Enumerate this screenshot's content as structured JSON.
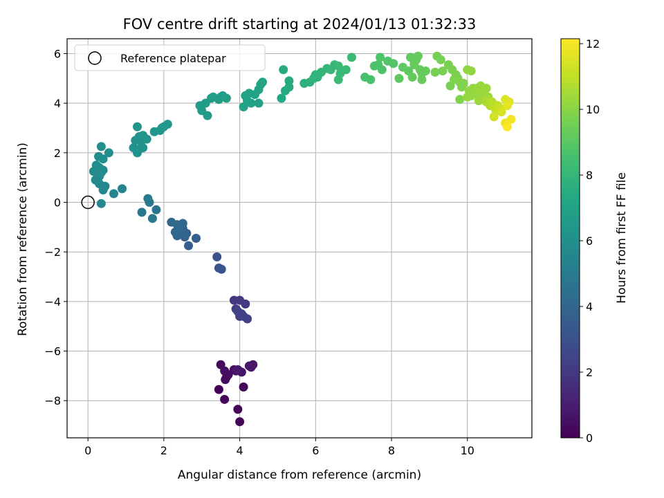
{
  "chart_data": {
    "type": "scatter",
    "title": "FOV centre drift starting at 2024/01/13 01:32:33",
    "xlabel": "Angular distance from reference (arcmin)",
    "ylabel": "Rotation from reference (arcmin)",
    "xlim": [
      -0.55,
      11.7
    ],
    "ylim": [
      -9.5,
      6.6
    ],
    "xticks": [
      0,
      2,
      4,
      6,
      8,
      10
    ],
    "yticks": [
      -8,
      -6,
      -4,
      -2,
      0,
      2,
      4,
      6
    ],
    "grid": true,
    "legend": {
      "position": "top-left",
      "entries": [
        "Reference platepar"
      ]
    },
    "reference_point": {
      "x": 0,
      "y": 0
    },
    "colorbar": {
      "label": "Hours from first FF file",
      "range": [
        0,
        12.15
      ],
      "ticks": [
        0,
        2,
        4,
        6,
        8,
        10,
        12
      ],
      "colormap": "viridis"
    },
    "points": [
      [
        3.45,
        -7.55,
        0.05
      ],
      [
        4.0,
        -8.85,
        0.1
      ],
      [
        3.95,
        -8.35,
        0.15
      ],
      [
        3.6,
        -7.95,
        0.2
      ],
      [
        4.1,
        -7.45,
        0.25
      ],
      [
        3.5,
        -6.55,
        0.3
      ],
      [
        3.65,
        -7.05,
        0.35
      ],
      [
        3.62,
        -7.15,
        0.4
      ],
      [
        3.7,
        -6.95,
        0.45
      ],
      [
        3.6,
        -6.8,
        0.5
      ],
      [
        3.85,
        -6.75,
        0.55
      ],
      [
        3.9,
        -6.8,
        0.6
      ],
      [
        4.05,
        -6.85,
        0.65
      ],
      [
        4.3,
        -6.65,
        0.7
      ],
      [
        4.35,
        -6.55,
        0.75
      ],
      [
        4.25,
        -6.6,
        0.8
      ],
      [
        3.95,
        -6.75,
        0.85
      ],
      [
        3.85,
        -3.95,
        2.0
      ],
      [
        4.0,
        -3.95,
        2.05
      ],
      [
        4.15,
        -4.1,
        2.1
      ],
      [
        3.9,
        -4.3,
        2.15
      ],
      [
        4.0,
        -4.6,
        2.2
      ],
      [
        4.05,
        -4.5,
        2.25
      ],
      [
        4.2,
        -4.7,
        2.3
      ],
      [
        4.1,
        -4.6,
        2.35
      ],
      [
        3.95,
        -4.4,
        2.4
      ],
      [
        3.4,
        -2.2,
        3.0
      ],
      [
        3.45,
        -2.65,
        3.1
      ],
      [
        3.52,
        -2.7,
        3.15
      ],
      [
        2.85,
        -1.45,
        3.6
      ],
      [
        2.65,
        -1.75,
        3.7
      ],
      [
        2.55,
        -1.4,
        3.75
      ],
      [
        2.6,
        -1.25,
        3.8
      ],
      [
        2.5,
        -1.05,
        3.85
      ],
      [
        2.45,
        -1.2,
        3.9
      ],
      [
        2.35,
        -1.35,
        3.95
      ],
      [
        2.3,
        -1.2,
        4.0
      ],
      [
        2.2,
        -0.8,
        4.05
      ],
      [
        2.35,
        -0.9,
        4.1
      ],
      [
        2.5,
        -0.85,
        4.15
      ],
      [
        2.4,
        -1.0,
        4.2
      ],
      [
        1.8,
        -0.3,
        4.7
      ],
      [
        1.7,
        -0.65,
        4.8
      ],
      [
        1.42,
        -0.4,
        4.85
      ],
      [
        1.62,
        0.0,
        4.9
      ],
      [
        1.58,
        0.15,
        4.95
      ],
      [
        0.9,
        0.55,
        5.4
      ],
      [
        0.68,
        0.35,
        5.5
      ],
      [
        0.35,
        -0.05,
        5.55
      ],
      [
        0.45,
        0.65,
        5.6
      ],
      [
        0.4,
        0.5,
        5.62
      ],
      [
        0.3,
        0.75,
        5.65
      ],
      [
        0.2,
        0.9,
        5.7
      ],
      [
        0.25,
        1.0,
        5.72
      ],
      [
        0.15,
        1.25,
        5.75
      ],
      [
        0.35,
        1.2,
        5.77
      ],
      [
        0.3,
        1.05,
        5.8
      ],
      [
        0.22,
        1.5,
        5.82
      ],
      [
        0.4,
        1.3,
        5.84
      ],
      [
        0.3,
        1.4,
        5.86
      ],
      [
        0.2,
        1.3,
        5.88
      ],
      [
        0.28,
        1.85,
        5.9
      ],
      [
        0.4,
        1.75,
        5.92
      ],
      [
        0.55,
        2.0,
        5.94
      ],
      [
        0.35,
        2.25,
        5.96
      ],
      [
        1.3,
        2.0,
        6.1
      ],
      [
        1.2,
        2.2,
        6.12
      ],
      [
        1.35,
        2.15,
        6.14
      ],
      [
        1.45,
        2.2,
        6.16
      ],
      [
        1.25,
        2.5,
        6.18
      ],
      [
        1.4,
        2.45,
        6.2
      ],
      [
        1.55,
        2.55,
        6.22
      ],
      [
        1.35,
        2.65,
        6.24
      ],
      [
        1.3,
        3.05,
        6.26
      ],
      [
        1.45,
        2.7,
        6.28
      ],
      [
        1.75,
        2.85,
        6.35
      ],
      [
        1.9,
        2.9,
        6.38
      ],
      [
        2.0,
        3.05,
        6.4
      ],
      [
        2.1,
        3.15,
        6.42
      ],
      [
        1.95,
        3.0,
        6.44
      ],
      [
        3.15,
        3.5,
        6.6
      ],
      [
        3.0,
        3.7,
        6.62
      ],
      [
        2.95,
        3.9,
        6.64
      ],
      [
        3.1,
        4.0,
        6.66
      ],
      [
        3.25,
        4.2,
        6.68
      ],
      [
        3.3,
        4.25,
        6.7
      ],
      [
        3.45,
        4.15,
        6.72
      ],
      [
        3.55,
        4.3,
        6.74
      ],
      [
        3.65,
        4.2,
        6.76
      ],
      [
        3.5,
        4.25,
        6.78
      ],
      [
        4.1,
        3.85,
        6.9
      ],
      [
        4.3,
        4.0,
        6.92
      ],
      [
        4.5,
        4.0,
        6.94
      ],
      [
        4.2,
        4.1,
        6.96
      ],
      [
        4.15,
        4.3,
        6.98
      ],
      [
        4.25,
        4.4,
        7.0
      ],
      [
        4.4,
        4.35,
        7.02
      ],
      [
        4.5,
        4.55,
        7.04
      ],
      [
        4.55,
        4.75,
        7.06
      ],
      [
        4.6,
        4.85,
        7.08
      ],
      [
        5.1,
        4.2,
        7.3
      ],
      [
        5.2,
        4.5,
        7.35
      ],
      [
        5.3,
        4.65,
        7.4
      ],
      [
        5.3,
        4.9,
        7.42
      ],
      [
        5.15,
        5.35,
        7.45
      ],
      [
        5.7,
        4.8,
        7.7
      ],
      [
        5.85,
        4.85,
        7.75
      ],
      [
        5.95,
        5.0,
        7.8
      ],
      [
        6.05,
        5.05,
        7.85
      ],
      [
        6.0,
        5.15,
        7.9
      ],
      [
        6.15,
        5.25,
        7.95
      ],
      [
        6.3,
        5.4,
        8.0
      ],
      [
        6.4,
        5.35,
        8.05
      ],
      [
        6.5,
        5.55,
        8.1
      ],
      [
        6.6,
        5.5,
        8.12
      ],
      [
        6.65,
        5.2,
        8.14
      ],
      [
        6.8,
        5.35,
        8.16
      ],
      [
        6.6,
        4.95,
        8.18
      ],
      [
        6.95,
        5.85,
        8.2
      ],
      [
        7.3,
        5.05,
        8.6
      ],
      [
        7.45,
        4.95,
        8.65
      ],
      [
        7.55,
        5.5,
        8.7
      ],
      [
        7.65,
        5.55,
        8.72
      ],
      [
        7.75,
        5.35,
        8.74
      ],
      [
        7.7,
        5.85,
        8.76
      ],
      [
        7.9,
        5.7,
        8.8
      ],
      [
        8.05,
        5.6,
        8.85
      ],
      [
        8.2,
        5.0,
        9.1
      ],
      [
        8.3,
        5.45,
        9.12
      ],
      [
        8.45,
        5.3,
        9.14
      ],
      [
        8.5,
        5.85,
        9.16
      ],
      [
        8.6,
        5.55,
        9.18
      ],
      [
        8.65,
        5.75,
        9.2
      ],
      [
        8.55,
        5.05,
        9.22
      ],
      [
        8.75,
        5.35,
        9.24
      ],
      [
        8.8,
        5.2,
        9.26
      ],
      [
        8.7,
        5.9,
        9.28
      ],
      [
        8.9,
        5.3,
        9.3
      ],
      [
        8.8,
        4.95,
        9.32
      ],
      [
        8.6,
        5.6,
        9.34
      ],
      [
        9.2,
        5.9,
        9.6
      ],
      [
        9.3,
        5.75,
        9.62
      ],
      [
        9.15,
        5.25,
        9.64
      ],
      [
        9.35,
        5.3,
        9.66
      ],
      [
        9.55,
        4.7,
        9.68
      ],
      [
        9.5,
        5.55,
        9.7
      ],
      [
        9.6,
        5.35,
        9.72
      ],
      [
        9.7,
        5.15,
        9.74
      ],
      [
        9.75,
        5.0,
        9.76
      ],
      [
        9.8,
        4.85,
        9.78
      ],
      [
        9.65,
        4.95,
        9.8
      ],
      [
        9.85,
        4.65,
        9.82
      ],
      [
        9.9,
        4.8,
        9.84
      ],
      [
        9.8,
        4.15,
        9.86
      ],
      [
        10.0,
        5.35,
        10.1
      ],
      [
        10.1,
        5.3,
        10.12
      ],
      [
        10.05,
        4.5,
        10.14
      ],
      [
        10.15,
        4.6,
        10.16
      ],
      [
        10.2,
        4.4,
        10.18
      ],
      [
        10.1,
        4.3,
        10.2
      ],
      [
        10.0,
        4.25,
        10.22
      ],
      [
        10.25,
        4.6,
        10.24
      ],
      [
        10.3,
        4.55,
        10.26
      ],
      [
        10.35,
        4.7,
        10.28
      ],
      [
        10.4,
        4.3,
        10.3
      ],
      [
        10.5,
        4.6,
        10.32
      ],
      [
        10.45,
        4.35,
        10.34
      ],
      [
        10.3,
        4.1,
        10.36
      ],
      [
        10.55,
        4.25,
        10.38
      ],
      [
        10.5,
        4.05,
        10.6
      ],
      [
        10.6,
        3.9,
        10.7
      ],
      [
        10.65,
        4.05,
        10.8
      ],
      [
        10.7,
        3.85,
        10.9
      ],
      [
        10.8,
        3.9,
        11.0
      ],
      [
        10.75,
        3.7,
        11.1
      ],
      [
        10.85,
        3.8,
        11.2
      ],
      [
        10.7,
        3.45,
        11.3
      ],
      [
        10.9,
        3.65,
        11.4
      ],
      [
        11.0,
        4.15,
        11.5
      ],
      [
        11.1,
        4.05,
        11.6
      ],
      [
        11.05,
        3.9,
        11.7
      ],
      [
        11.0,
        3.2,
        11.85
      ],
      [
        11.15,
        3.35,
        12.0
      ],
      [
        11.05,
        3.05,
        12.1
      ]
    ]
  }
}
